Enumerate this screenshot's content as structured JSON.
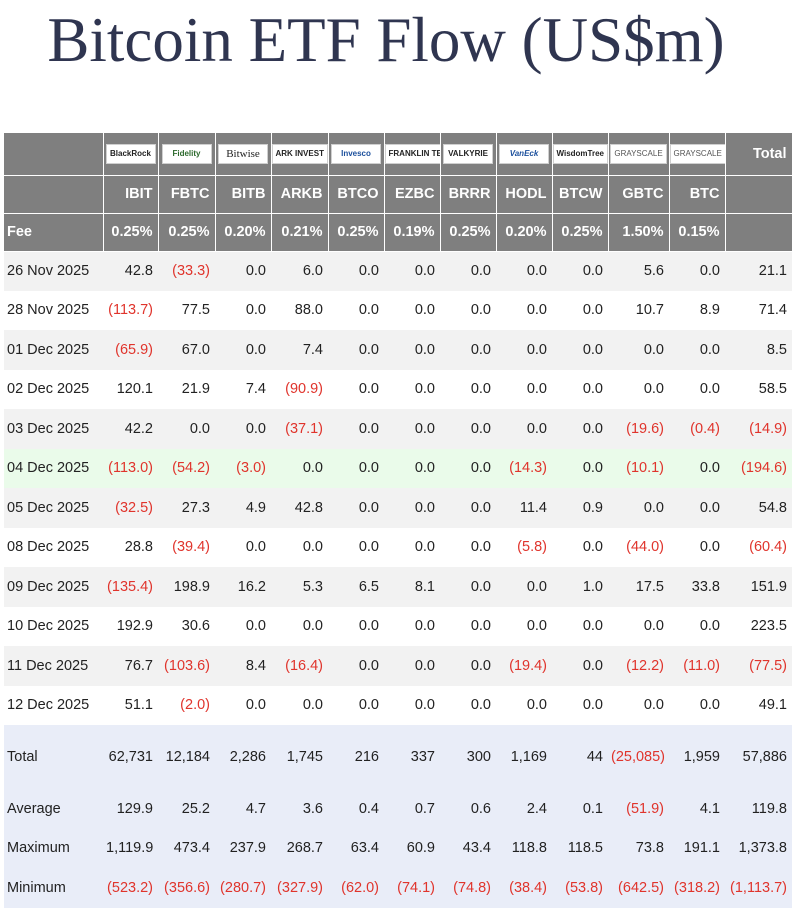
{
  "title": "Bitcoin ETF Flow (US$m)",
  "chart_data": {
    "type": "table",
    "title": "Bitcoin ETF Flow (US$m)",
    "issuers": [
      "BlackRock",
      "Fidelity",
      "Bitwise",
      "ARK INVEST",
      "Invesco",
      "FRANKLIN TEMPLETON",
      "VALKYRIE",
      "VanEck",
      "WisdomTree",
      "GRAYSCALE",
      "GRAYSCALE"
    ],
    "tickers": [
      "IBIT",
      "FBTC",
      "BITB",
      "ARKB",
      "BTCO",
      "EZBC",
      "BRRR",
      "HODL",
      "BTCW",
      "GBTC",
      "BTC"
    ],
    "total_header": "Total",
    "fee_label": "Fee",
    "fees": [
      "0.25%",
      "0.25%",
      "0.20%",
      "0.21%",
      "0.25%",
      "0.19%",
      "0.25%",
      "0.20%",
      "0.25%",
      "1.50%",
      "0.15%"
    ],
    "rows": [
      {
        "date": "26 Nov 2025",
        "values": [
          42.8,
          -33.3,
          0.0,
          6.0,
          0.0,
          0.0,
          0.0,
          0.0,
          0.0,
          5.6,
          0.0
        ],
        "total": 21.1
      },
      {
        "date": "28 Nov 2025",
        "values": [
          -113.7,
          77.5,
          0.0,
          88.0,
          0.0,
          0.0,
          0.0,
          0.0,
          0.0,
          10.7,
          8.9
        ],
        "total": 71.4
      },
      {
        "date": "01 Dec 2025",
        "values": [
          -65.9,
          67.0,
          0.0,
          7.4,
          0.0,
          0.0,
          0.0,
          0.0,
          0.0,
          0.0,
          0.0
        ],
        "total": 8.5
      },
      {
        "date": "02 Dec 2025",
        "values": [
          120.1,
          21.9,
          7.4,
          -90.9,
          0.0,
          0.0,
          0.0,
          0.0,
          0.0,
          0.0,
          0.0
        ],
        "total": 58.5
      },
      {
        "date": "03 Dec 2025",
        "values": [
          42.2,
          0.0,
          0.0,
          -37.1,
          0.0,
          0.0,
          0.0,
          0.0,
          0.0,
          -19.6,
          -0.4
        ],
        "total": -14.9
      },
      {
        "date": "04 Dec 2025",
        "values": [
          -113.0,
          -54.2,
          -3.0,
          0.0,
          0.0,
          0.0,
          0.0,
          -14.3,
          0.0,
          -10.1,
          0.0
        ],
        "total": -194.6
      },
      {
        "date": "05 Dec 2025",
        "values": [
          -32.5,
          27.3,
          4.9,
          42.8,
          0.0,
          0.0,
          0.0,
          11.4,
          0.9,
          0.0,
          0.0
        ],
        "total": 54.8
      },
      {
        "date": "08 Dec 2025",
        "values": [
          28.8,
          -39.4,
          0.0,
          0.0,
          0.0,
          0.0,
          0.0,
          -5.8,
          0.0,
          -44.0,
          0.0
        ],
        "total": -60.4
      },
      {
        "date": "09 Dec 2025",
        "values": [
          -135.4,
          198.9,
          16.2,
          5.3,
          6.5,
          8.1,
          0.0,
          0.0,
          1.0,
          17.5,
          33.8
        ],
        "total": 151.9
      },
      {
        "date": "10 Dec 2025",
        "values": [
          192.9,
          30.6,
          0.0,
          0.0,
          0.0,
          0.0,
          0.0,
          0.0,
          0.0,
          0.0,
          0.0
        ],
        "total": 223.5
      },
      {
        "date": "11 Dec 2025",
        "values": [
          76.7,
          -103.6,
          8.4,
          -16.4,
          0.0,
          0.0,
          0.0,
          -19.4,
          0.0,
          -12.2,
          -11.0
        ],
        "total": -77.5
      },
      {
        "date": "12 Dec 2025",
        "values": [
          51.1,
          -2.0,
          0.0,
          0.0,
          0.0,
          0.0,
          0.0,
          0.0,
          0.0,
          0.0,
          0.0
        ],
        "total": 49.1
      }
    ],
    "summary": [
      {
        "label": "Total",
        "decimals": 0,
        "values": [
          62731,
          12184,
          2286,
          1745,
          216,
          337,
          300,
          1169,
          44,
          -25085,
          1959
        ],
        "total": 57886
      },
      {
        "label": "Average",
        "decimals": 1,
        "values": [
          129.9,
          25.2,
          4.7,
          3.6,
          0.4,
          0.7,
          0.6,
          2.4,
          0.1,
          -51.9,
          4.1
        ],
        "total": 119.8
      },
      {
        "label": "Maximum",
        "decimals": 1,
        "values": [
          1119.9,
          473.4,
          237.9,
          268.7,
          63.4,
          60.9,
          43.4,
          118.8,
          118.5,
          73.8,
          191.1
        ],
        "total": 1373.8
      },
      {
        "label": "Minimum",
        "decimals": 1,
        "values": [
          -523.2,
          -356.6,
          -280.7,
          -327.9,
          -62.0,
          -74.1,
          -74.8,
          -38.4,
          -53.8,
          -642.5,
          -318.2
        ],
        "total": -1113.7
      }
    ],
    "highlight_date": "04 Dec 2025",
    "negative_color": "#e0342c",
    "header_bg": "#7f7f7f",
    "summary_bg": "#e9edf8",
    "highlight_bg": "#eafbea"
  }
}
